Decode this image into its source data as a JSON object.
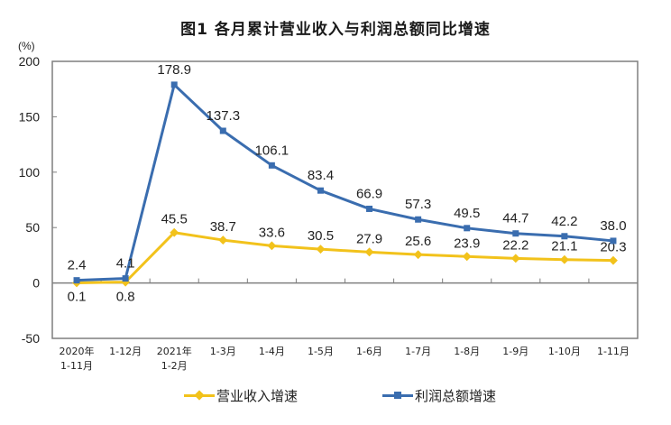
{
  "title": "图1  各月累计营业收入与利润总额同比增速",
  "y_unit": "(%)",
  "colors": {
    "revenue": "#F2C21B",
    "profit": "#3A6DAF",
    "axis": "#7f7f7f",
    "text": "#222222"
  },
  "legend": [
    {
      "label": "营业收入增速",
      "color": "#F2C21B",
      "marker": "diamond"
    },
    {
      "label": "利润总额增速",
      "color": "#3A6DAF",
      "marker": "square"
    }
  ],
  "chart_data": {
    "type": "line",
    "title": "图1  各月累计营业收入与利润总额同比增速",
    "xlabel": "",
    "ylabel": "(%)",
    "ylim": [
      -50,
      200
    ],
    "yticks": [
      -50,
      0,
      50,
      100,
      150,
      200
    ],
    "grid": false,
    "legend_position": "bottom",
    "categories": [
      "2020年\n1-11月",
      "1-12月",
      "2021年\n1-2月",
      "1-3月",
      "1-4月",
      "1-5月",
      "1-6月",
      "1-7月",
      "1-8月",
      "1-9月",
      "1-10月",
      "1-11月"
    ],
    "series": [
      {
        "name": "营业收入增速",
        "values": [
          0.1,
          0.8,
          45.5,
          38.7,
          33.6,
          30.5,
          27.9,
          25.6,
          23.9,
          22.2,
          21.1,
          20.3
        ]
      },
      {
        "name": "利润总额增速",
        "values": [
          2.4,
          4.1,
          178.9,
          137.3,
          106.1,
          83.4,
          66.9,
          57.3,
          49.5,
          44.7,
          42.2,
          38.0
        ]
      }
    ]
  }
}
